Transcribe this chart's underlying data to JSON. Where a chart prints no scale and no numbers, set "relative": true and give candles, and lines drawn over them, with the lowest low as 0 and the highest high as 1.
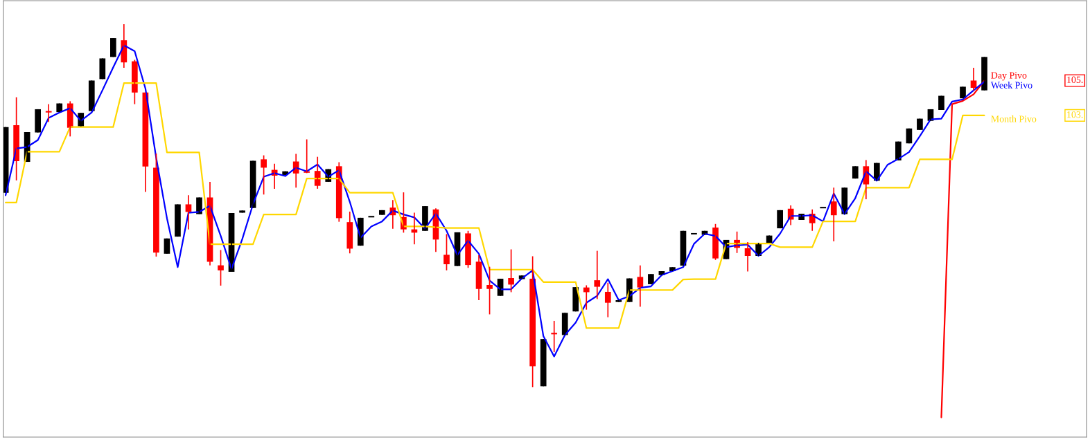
{
  "chart_data": {
    "type": "candlestick",
    "relative": true,
    "categories": [
      null,
      null,
      null,
      null,
      null,
      null,
      null,
      null,
      null,
      null,
      null,
      null,
      null,
      null,
      null,
      null,
      null,
      null,
      null,
      null,
      null,
      null,
      null,
      null,
      null,
      null,
      null,
      null,
      null,
      null,
      null,
      null,
      null,
      null,
      null,
      null,
      null,
      null,
      null,
      null,
      null,
      null,
      null,
      null,
      null,
      null,
      null,
      null,
      null,
      null,
      null,
      null,
      null,
      null,
      null,
      null,
      null,
      null,
      null,
      null,
      null,
      null,
      null,
      null,
      null,
      null,
      null,
      null,
      null,
      null,
      null,
      null,
      null,
      null,
      null,
      null,
      null,
      null,
      null,
      null,
      null,
      null,
      null,
      null,
      null,
      null,
      null,
      null,
      null,
      null,
      null,
      null
    ],
    "ohlc": [
      [
        0.536,
        0.717,
        0.536,
        0.717
      ],
      [
        0.722,
        0.799,
        0.57,
        0.623
      ],
      [
        0.621,
        0.703,
        0.621,
        0.703
      ],
      [
        0.702,
        0.766,
        0.702,
        0.766
      ],
      [
        0.761,
        0.78,
        0.731,
        0.757
      ],
      [
        0.758,
        0.782,
        0.758,
        0.782
      ],
      [
        0.782,
        0.788,
        0.691,
        0.715
      ],
      [
        0.719,
        0.756,
        0.719,
        0.756
      ],
      [
        0.761,
        0.845,
        0.761,
        0.845
      ],
      [
        0.849,
        0.906,
        0.849,
        0.906
      ],
      [
        0.91,
        0.962,
        0.91,
        0.962
      ],
      [
        0.956,
        1.0,
        0.88,
        0.895
      ],
      [
        0.898,
        0.902,
        0.78,
        0.812
      ],
      [
        0.812,
        0.812,
        0.538,
        0.608
      ],
      [
        0.605,
        0.644,
        0.36,
        0.371
      ],
      [
        0.368,
        0.41,
        0.368,
        0.41
      ],
      [
        0.415,
        0.504,
        0.415,
        0.504
      ],
      [
        0.504,
        0.529,
        0.435,
        0.483
      ],
      [
        0.477,
        0.523,
        0.477,
        0.523
      ],
      [
        0.523,
        0.566,
        0.336,
        0.346
      ],
      [
        0.336,
        0.378,
        0.28,
        0.322
      ],
      [
        0.318,
        0.48,
        0.318,
        0.48
      ],
      [
        0.481,
        0.487,
        0.481,
        0.487
      ],
      [
        0.494,
        0.624,
        0.494,
        0.624
      ],
      [
        0.628,
        0.639,
        0.531,
        0.605
      ],
      [
        0.599,
        0.616,
        0.547,
        0.583
      ],
      [
        0.585,
        0.595,
        0.585,
        0.595
      ],
      [
        0.622,
        0.643,
        0.55,
        0.589
      ],
      [
        0.593,
        0.683,
        0.59,
        0.59
      ],
      [
        0.596,
        0.635,
        0.547,
        0.555
      ],
      [
        0.566,
        0.601,
        0.566,
        0.601
      ],
      [
        0.609,
        0.62,
        0.456,
        0.466
      ],
      [
        0.455,
        0.484,
        0.369,
        0.382
      ],
      [
        0.39,
        0.467,
        0.39,
        0.467
      ],
      [
        0.47,
        0.47,
        0.47,
        0.47
      ],
      [
        0.475,
        0.488,
        0.475,
        0.488
      ],
      [
        0.495,
        0.516,
        0.437,
        0.474
      ],
      [
        0.469,
        0.537,
        0.426,
        0.435
      ],
      [
        0.435,
        0.481,
        0.394,
        0.426
      ],
      [
        0.431,
        0.499,
        0.431,
        0.499
      ],
      [
        0.49,
        0.493,
        0.373,
        0.407
      ],
      [
        0.365,
        0.422,
        0.322,
        0.339
      ],
      [
        0.334,
        0.427,
        0.334,
        0.427
      ],
      [
        0.424,
        0.431,
        0.329,
        0.337
      ],
      [
        0.346,
        0.364,
        0.24,
        0.271
      ],
      [
        0.282,
        0.332,
        0.201,
        0.271
      ],
      [
        0.252,
        0.299,
        0.252,
        0.299
      ],
      [
        0.301,
        0.38,
        0.262,
        0.283
      ],
      [
        0.298,
        0.308,
        0.298,
        0.308
      ],
      [
        0.299,
        0.361,
        0.0,
        0.058
      ],
      [
        0.003,
        0.133,
        0.003,
        0.133
      ],
      [
        0.148,
        0.183,
        0.097,
        0.146
      ],
      [
        0.144,
        0.205,
        0.144,
        0.205
      ],
      [
        0.209,
        0.276,
        0.209,
        0.276
      ],
      [
        0.275,
        0.281,
        0.214,
        0.262
      ],
      [
        0.295,
        0.376,
        0.243,
        0.277
      ],
      [
        0.263,
        0.288,
        0.193,
        0.233
      ],
      [
        0.235,
        0.24,
        0.235,
        0.24
      ],
      [
        0.235,
        0.3,
        0.235,
        0.3
      ],
      [
        0.304,
        0.336,
        0.222,
        0.275
      ],
      [
        0.284,
        0.312,
        0.284,
        0.312
      ],
      [
        0.309,
        0.32,
        0.309,
        0.32
      ],
      [
        0.32,
        0.331,
        0.32,
        0.331
      ],
      [
        0.335,
        0.431,
        0.335,
        0.431
      ],
      [
        0.423,
        0.423,
        0.423,
        0.423
      ],
      [
        0.42,
        0.431,
        0.42,
        0.431
      ],
      [
        0.44,
        0.45,
        0.351,
        0.355
      ],
      [
        0.353,
        0.406,
        0.353,
        0.406
      ],
      [
        0.406,
        0.429,
        0.37,
        0.384
      ],
      [
        0.383,
        0.4,
        0.319,
        0.362
      ],
      [
        0.362,
        0.398,
        0.362,
        0.398
      ],
      [
        0.398,
        0.418,
        0.398,
        0.418
      ],
      [
        0.438,
        0.488,
        0.438,
        0.488
      ],
      [
        0.492,
        0.501,
        0.447,
        0.462
      ],
      [
        0.461,
        0.478,
        0.461,
        0.478
      ],
      [
        0.478,
        0.49,
        0.431,
        0.452
      ],
      [
        0.495,
        0.495,
        0.495,
        0.495
      ],
      [
        0.512,
        0.55,
        0.402,
        0.474
      ],
      [
        0.477,
        0.55,
        0.477,
        0.55
      ],
      [
        0.575,
        0.609,
        0.575,
        0.609
      ],
      [
        0.609,
        0.626,
        0.518,
        0.559
      ],
      [
        0.569,
        0.618,
        0.569,
        0.618
      ],
      null,
      [
        0.625,
        0.677,
        0.625,
        0.677
      ],
      [
        0.672,
        0.713,
        0.672,
        0.713
      ],
      [
        0.709,
        0.74,
        0.709,
        0.74
      ],
      [
        0.734,
        0.766,
        0.734,
        0.766
      ],
      [
        0.764,
        0.803,
        0.764,
        0.803
      ],
      null,
      [
        0.796,
        0.828,
        0.796,
        0.828
      ],
      [
        0.845,
        0.88,
        0.818,
        0.825
      ],
      [
        0.818,
        0.91,
        0.818,
        0.91
      ]
    ],
    "colors": [
      "#000000",
      "#ff0000",
      "#000000",
      "#000000",
      "#ff0000",
      "#000000",
      "#ff0000",
      "#000000",
      "#000000",
      "#000000",
      "#000000",
      "#ff0000",
      "#ff0000",
      "#ff0000",
      "#ff0000",
      "#000000",
      "#000000",
      "#ff0000",
      "#000000",
      "#ff0000",
      "#ff0000",
      "#000000",
      "#000000",
      "#000000",
      "#ff0000",
      "#ff0000",
      "#000000",
      "#ff0000",
      "#ff0000",
      "#ff0000",
      "#000000",
      "#ff0000",
      "#ff0000",
      "#000000",
      "#000000",
      "#000000",
      "#ff0000",
      "#ff0000",
      "#ff0000",
      "#000000",
      "#ff0000",
      "#ff0000",
      "#000000",
      "#ff0000",
      "#ff0000",
      "#ff0000",
      "#000000",
      "#ff0000",
      "#000000",
      "#ff0000",
      "#000000",
      "#ff0000",
      "#000000",
      "#000000",
      "#ff0000",
      "#ff0000",
      "#ff0000",
      "#000000",
      "#000000",
      "#ff0000",
      "#000000",
      "#000000",
      "#000000",
      "#000000",
      "#000000",
      "#000000",
      "#ff0000",
      "#000000",
      "#ff0000",
      "#ff0000",
      "#000000",
      "#000000",
      "#000000",
      "#ff0000",
      "#000000",
      "#ff0000",
      "#000000",
      "#ff0000",
      "#000000",
      "#000000",
      "#ff0000",
      "#000000",
      null,
      "#000000",
      "#000000",
      "#000000",
      "#000000",
      "#000000",
      null,
      "#000000",
      "#ff0000",
      "#000000"
    ],
    "series": [
      {
        "name": "Day Pivo",
        "type": "line",
        "color": "#ff0000",
        "values": [
          null,
          null,
          null,
          null,
          null,
          null,
          null,
          null,
          null,
          null,
          null,
          null,
          null,
          null,
          null,
          null,
          null,
          null,
          null,
          null,
          null,
          null,
          null,
          null,
          null,
          null,
          null,
          null,
          null,
          null,
          null,
          null,
          null,
          null,
          null,
          null,
          null,
          null,
          null,
          null,
          null,
          null,
          null,
          null,
          null,
          null,
          null,
          null,
          null,
          null,
          null,
          null,
          null,
          null,
          null,
          null,
          null,
          null,
          null,
          null,
          null,
          null,
          null,
          null,
          null,
          null,
          null,
          null,
          null,
          null,
          null,
          null,
          null,
          null,
          null,
          null,
          null,
          null,
          null,
          null,
          null,
          null,
          null,
          null,
          null,
          null,
          null,
          -0.083,
          0.78,
          0.789,
          0.807,
          0.845
        ]
      },
      {
        "name": "Week Pivo",
        "type": "line",
        "color": "#0000ff",
        "values": [
          0.529,
          0.658,
          0.662,
          0.681,
          0.742,
          0.757,
          0.769,
          0.734,
          0.757,
          0.818,
          0.881,
          0.942,
          0.926,
          0.823,
          0.632,
          0.466,
          0.331,
          0.481,
          0.483,
          0.5,
          0.417,
          0.326,
          0.408,
          0.504,
          0.58,
          0.59,
          0.582,
          0.605,
          0.595,
          0.614,
          0.58,
          0.598,
          0.511,
          0.412,
          0.443,
          0.457,
          0.487,
          0.476,
          0.468,
          0.437,
          0.479,
          0.431,
          0.364,
          0.404,
          0.368,
          0.294,
          0.27,
          0.27,
          0.3,
          0.322,
          0.141,
          0.085,
          0.144,
          0.178,
          0.233,
          0.252,
          0.298,
          0.24,
          0.251,
          0.274,
          0.278,
          0.309,
          0.32,
          0.331,
          0.395,
          0.423,
          0.417,
          0.386,
          0.391,
          0.393,
          0.362,
          0.386,
          0.423,
          0.472,
          0.472,
          0.474,
          0.457,
          0.534,
          0.477,
          0.521,
          0.595,
          0.569,
          0.613,
          0.629,
          0.648,
          0.692,
          0.738,
          0.74,
          0.787,
          0.793,
          0.818,
          0.842
        ]
      },
      {
        "name": "Month Pivo",
        "type": "line",
        "color": "#ffd700",
        "values": [
          0.509,
          0.509,
          0.649,
          0.649,
          0.649,
          0.649,
          0.717,
          0.717,
          0.717,
          0.717,
          0.717,
          0.838,
          0.838,
          0.838,
          0.838,
          0.647,
          0.647,
          0.647,
          0.647,
          0.394,
          0.394,
          0.394,
          0.394,
          0.394,
          0.476,
          0.476,
          0.476,
          0.476,
          0.575,
          0.575,
          0.575,
          0.575,
          0.536,
          0.536,
          0.536,
          0.536,
          0.536,
          0.443,
          0.443,
          0.443,
          0.441,
          0.439,
          0.439,
          0.439,
          0.439,
          0.324,
          0.324,
          0.324,
          0.324,
          0.324,
          0.29,
          0.29,
          0.29,
          0.29,
          0.163,
          0.163,
          0.163,
          0.163,
          0.268,
          0.268,
          0.268,
          0.268,
          0.268,
          0.297,
          0.298,
          0.298,
          0.298,
          0.396,
          0.396,
          0.396,
          0.396,
          0.396,
          0.386,
          0.386,
          0.386,
          0.386,
          0.457,
          0.457,
          0.457,
          0.457,
          0.55,
          0.55,
          0.55,
          0.55,
          0.55,
          0.628,
          0.628,
          0.628,
          0.628,
          0.749,
          0.749,
          0.749
        ]
      }
    ],
    "annotations": [
      "105.",
      "103."
    ]
  }
}
